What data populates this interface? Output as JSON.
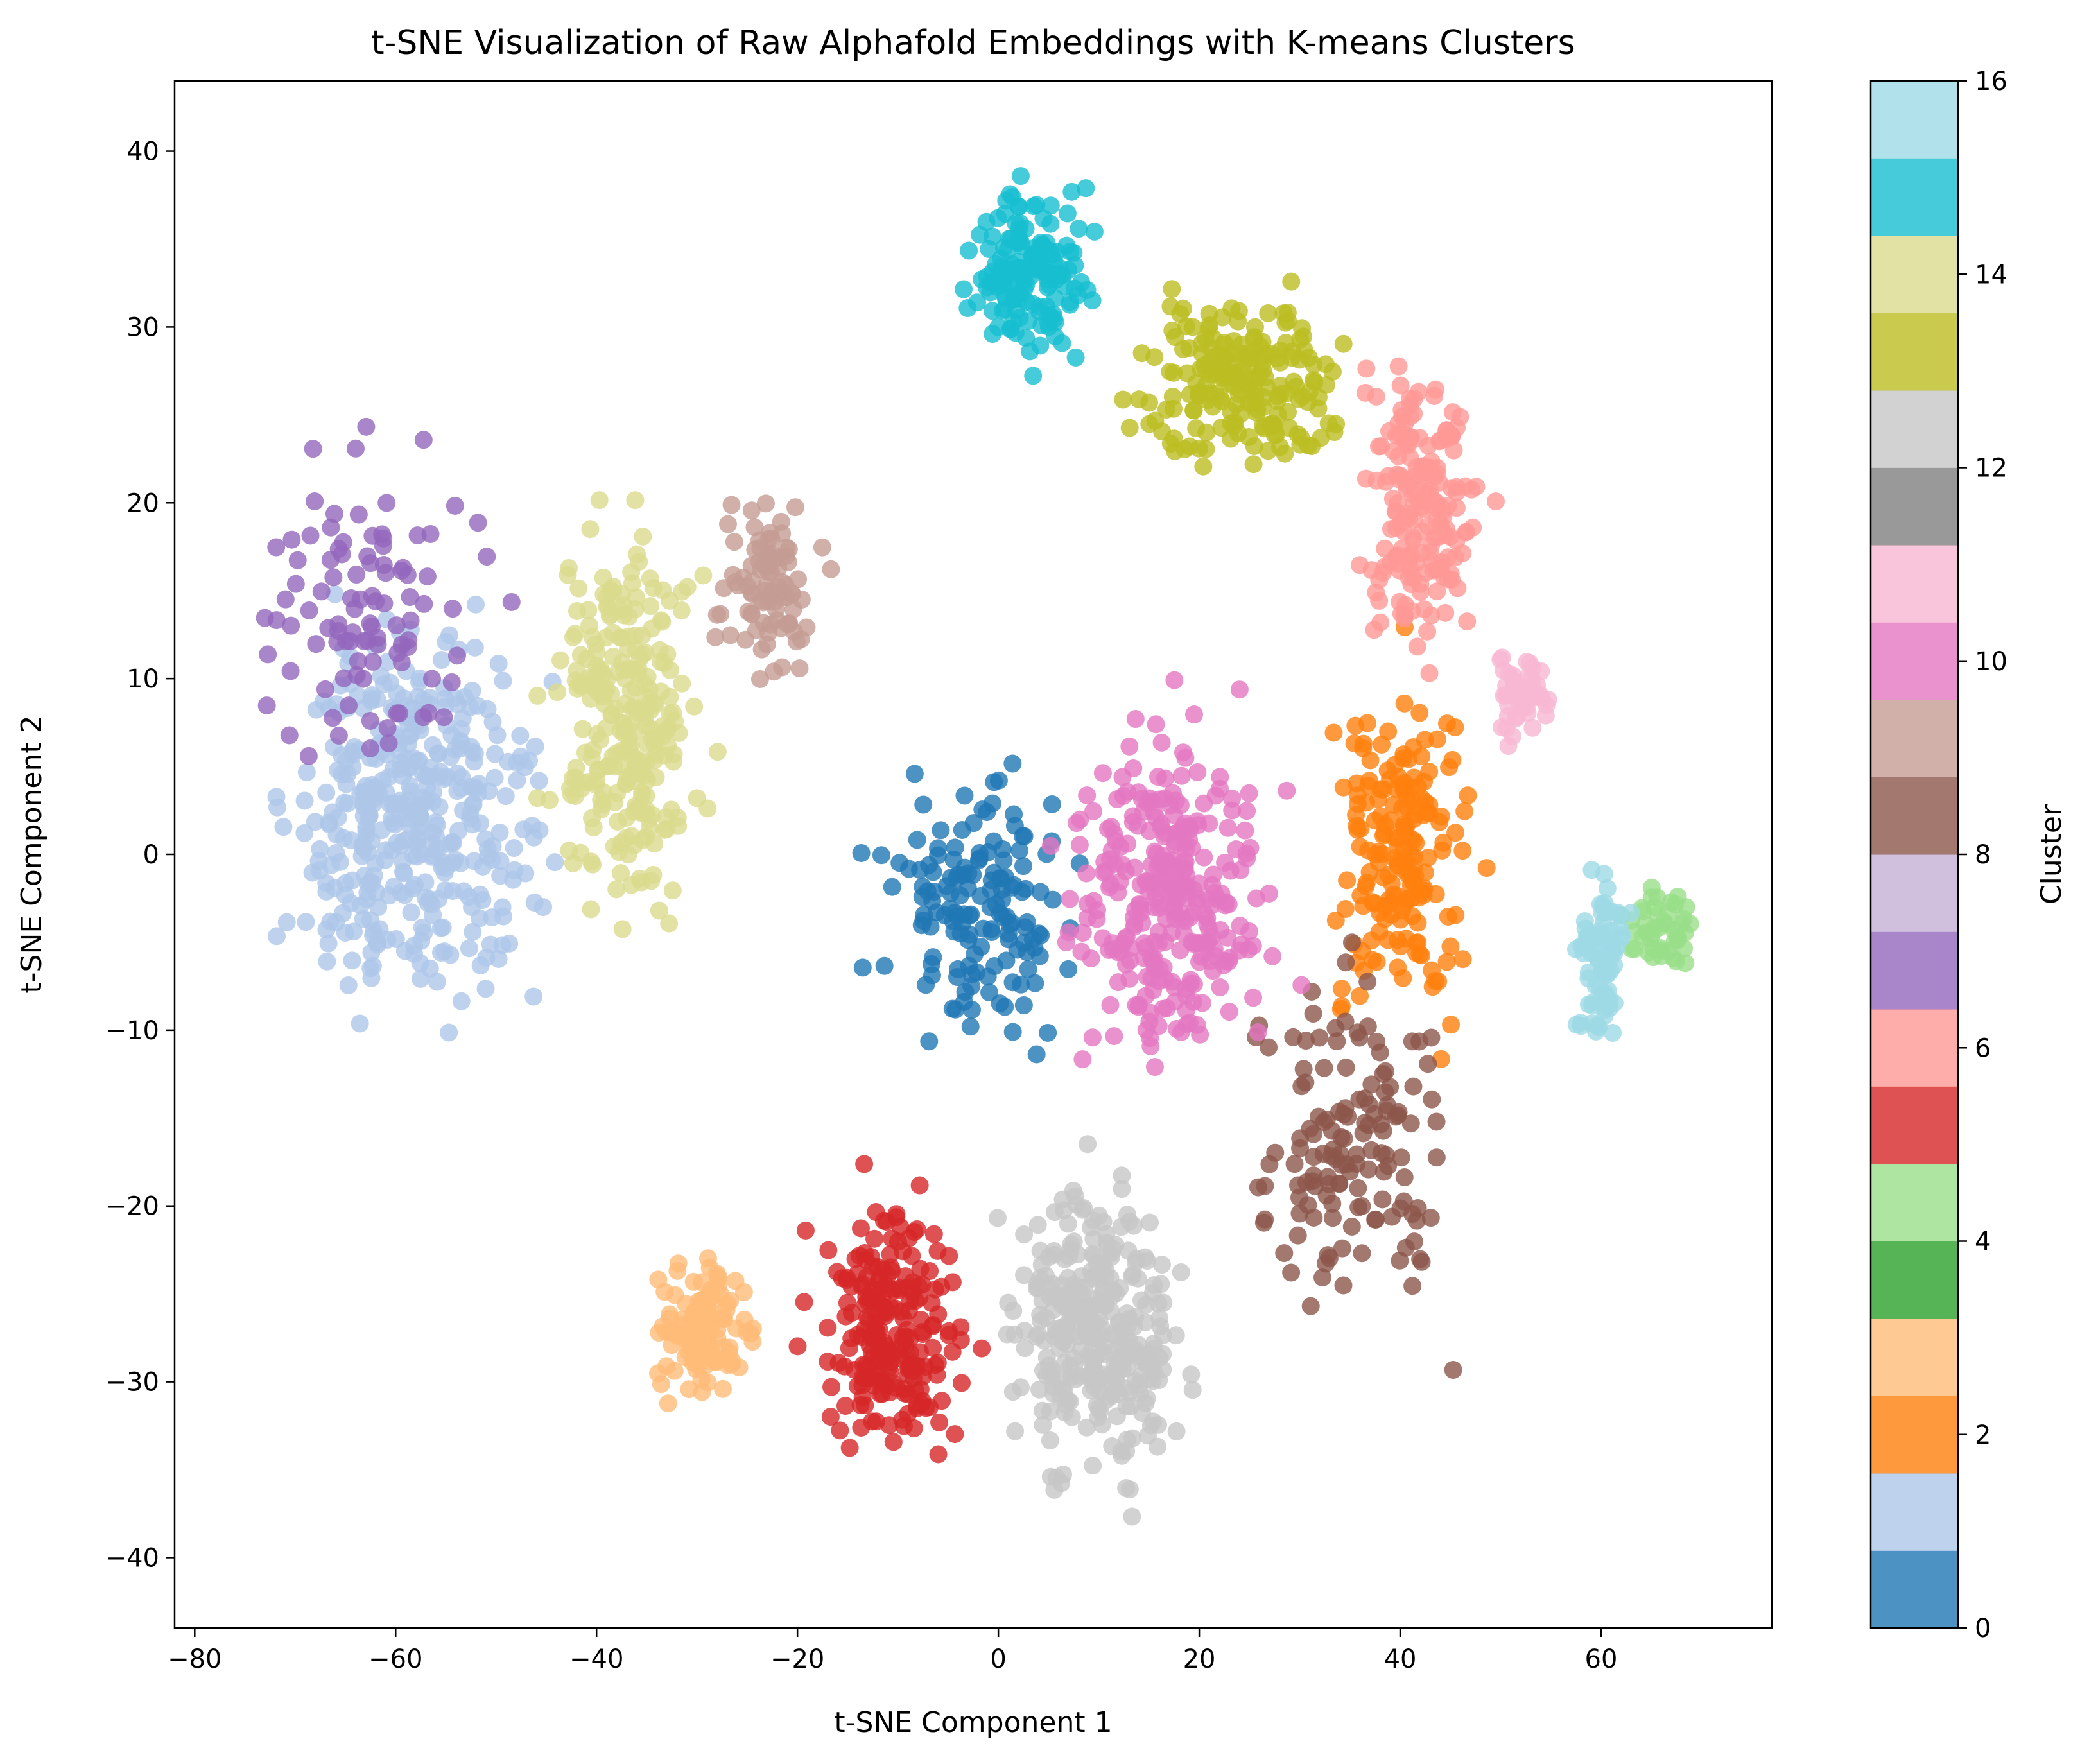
{
  "chart_data": {
    "type": "scatter",
    "title": "t-SNE Visualization of Raw Alphafold Embeddings with K-means Clusters",
    "xlabel": "t-SNE Component 1",
    "ylabel": "t-SNE Component 2",
    "xlim": [
      -82,
      77
    ],
    "ylim": [
      -44,
      44
    ],
    "x_ticks": [
      -80,
      -60,
      -40,
      -20,
      0,
      20,
      40,
      60
    ],
    "y_ticks": [
      -40,
      -30,
      -20,
      -10,
      0,
      10,
      20,
      30,
      40
    ],
    "x_tick_labels": [
      "−80",
      "−60",
      "−40",
      "−20",
      "0",
      "20",
      "40",
      "60"
    ],
    "y_tick_labels": [
      "−40",
      "−30",
      "−20",
      "−10",
      "0",
      "10",
      "20",
      "30",
      "40"
    ],
    "grid": false,
    "colorbar": {
      "label": "Cluster",
      "range": [
        0,
        16
      ],
      "ticks": [
        0,
        2,
        4,
        6,
        8,
        10,
        12,
        14,
        16
      ],
      "tick_labels": [
        "0",
        "2",
        "4",
        "6",
        "8",
        "10",
        "12",
        "14",
        "16"
      ],
      "colors": [
        "#1f77b4",
        "#aec7e8",
        "#ff7f0e",
        "#ffbb78",
        "#2ca02c",
        "#98df8a",
        "#d62728",
        "#ff9896",
        "#9467bd",
        "#c5b0d5",
        "#8c564b",
        "#c49c94",
        "#e377c2",
        "#f7b6d2",
        "#7f7f7f",
        "#c7c7c7",
        "#bcbd22",
        "#dbdb8d",
        "#17becf",
        "#9edae5"
      ]
    },
    "clusters": [
      {
        "name": "0",
        "color": "#1f77b4",
        "n": 150,
        "center": [
          -2,
          -3
        ],
        "spread": [
          8,
          6
        ]
      },
      {
        "name": "1",
        "color": "#aec7e8",
        "n": 400,
        "center": [
          -58,
          2
        ],
        "spread": [
          10,
          9
        ]
      },
      {
        "name": "2",
        "color": "#ff7f0e",
        "n": 180,
        "center": [
          40,
          0
        ],
        "spread": [
          6,
          8
        ]
      },
      {
        "name": "3",
        "color": "#ffbb78",
        "n": 120,
        "center": [
          -29,
          -27
        ],
        "spread": [
          4,
          3
        ]
      },
      {
        "name": "4",
        "color": "#98df8a",
        "n": 45,
        "center": [
          66,
          -4
        ],
        "spread": [
          3,
          2
        ]
      },
      {
        "name": "5",
        "color": "#d62728",
        "n": 220,
        "center": [
          -11,
          -27
        ],
        "spread": [
          6,
          6
        ]
      },
      {
        "name": "6",
        "color": "#ff9896",
        "n": 180,
        "center": [
          42,
          20
        ],
        "spread": [
          5,
          7
        ]
      },
      {
        "name": "7",
        "color": "#9467bd",
        "n": 100,
        "center": [
          -63,
          14
        ],
        "spread": [
          10,
          8
        ]
      },
      {
        "name": "8",
        "color": "#8c564b",
        "n": 140,
        "center": [
          35,
          -16
        ],
        "spread": [
          8,
          8
        ]
      },
      {
        "name": "9",
        "color": "#c49c94",
        "n": 90,
        "center": [
          -23,
          15
        ],
        "spread": [
          4,
          4
        ]
      },
      {
        "name": "10",
        "color": "#e377c2",
        "n": 300,
        "center": [
          17,
          -2
        ],
        "spread": [
          8,
          8
        ]
      },
      {
        "name": "11",
        "color": "#f7b6d2",
        "n": 45,
        "center": [
          52,
          9
        ],
        "spread": [
          2,
          2
        ]
      },
      {
        "name": "12",
        "color": "#c7c7c7",
        "n": 320,
        "center": [
          10,
          -27
        ],
        "spread": [
          7,
          7
        ]
      },
      {
        "name": "13",
        "color": "#bcbd22",
        "n": 200,
        "center": [
          24,
          27
        ],
        "spread": [
          8,
          4
        ]
      },
      {
        "name": "14",
        "color": "#dbdb8d",
        "n": 260,
        "center": [
          -37,
          8
        ],
        "spread": [
          6,
          9
        ]
      },
      {
        "name": "15",
        "color": "#17becf",
        "n": 160,
        "center": [
          3,
          33
        ],
        "spread": [
          5,
          4
        ]
      },
      {
        "name": "16",
        "color": "#9edae5",
        "n": 80,
        "center": [
          60,
          -6
        ],
        "spread": [
          2,
          4
        ]
      }
    ]
  }
}
